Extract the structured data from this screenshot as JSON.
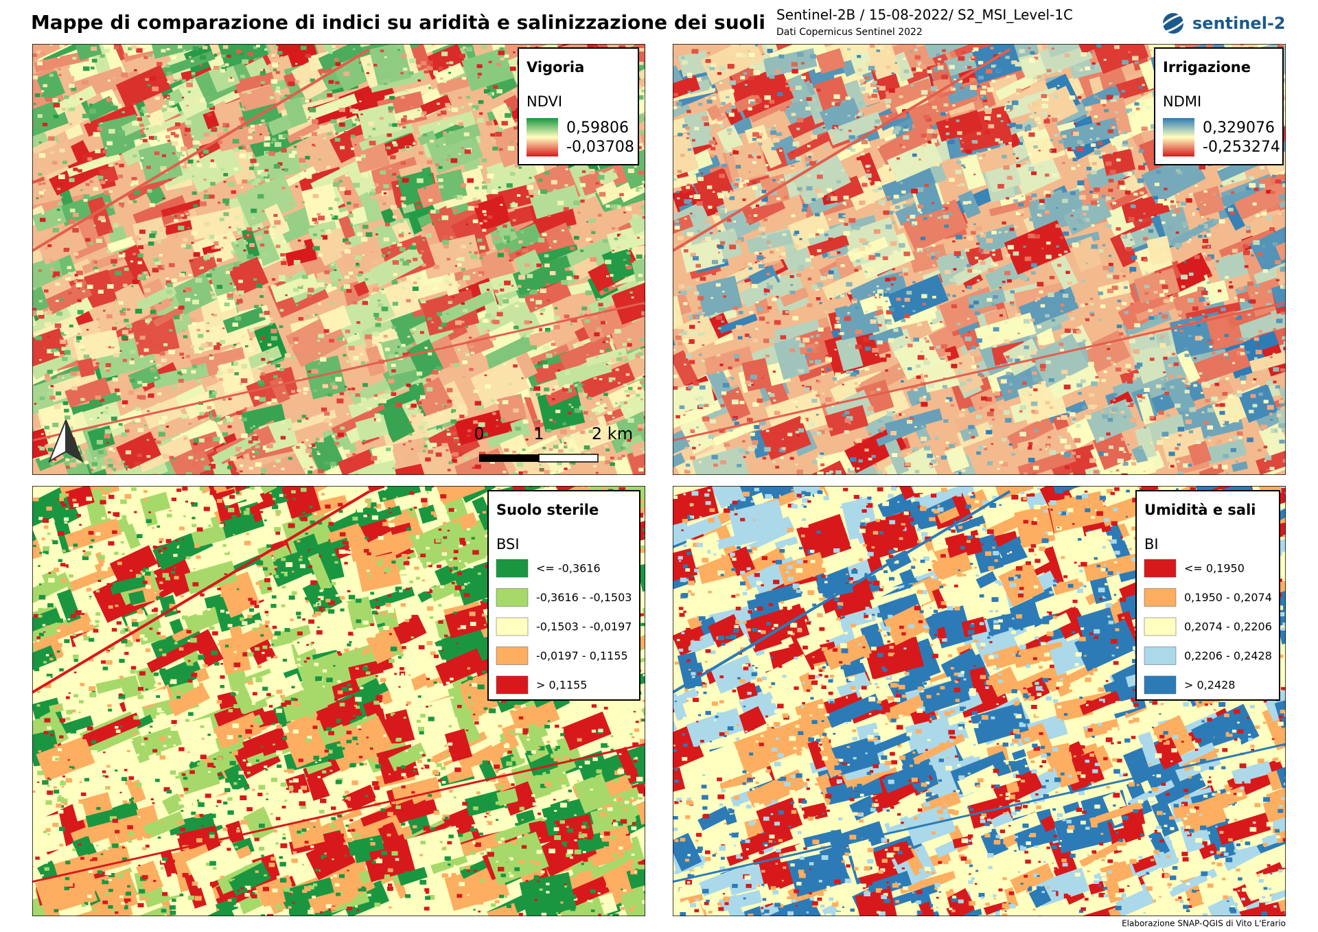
{
  "header": {
    "title": "Mappe di comparazione di indici su aridità e salinizzazione dei suoli",
    "subtitle": "Sentinel-2B / 15-08-2022/ S2_MSI_Level-1C",
    "source": "Dati Copernicus Sentinel 2022",
    "logo": "sentinel-2"
  },
  "maps": [
    {
      "title": "Vigoria",
      "index": "NDVI",
      "max": "0,59806",
      "min": "-0,03708",
      "colors": [
        "#1a9641",
        "#ffffbf",
        "#d7191c"
      ]
    },
    {
      "title": "Irrigazione",
      "index": "NDMI",
      "max": "0,329076",
      "min": "-0,253274",
      "colors": [
        "#2c7bb6",
        "#ffffbf",
        "#d7191c"
      ]
    },
    {
      "title": "Suolo sterile",
      "index": "BSI",
      "classes": [
        {
          "label": "<= -0,3616",
          "color": "#1a9641"
        },
        {
          "label": "-0,3616 - -0,1503",
          "color": "#a6d96a"
        },
        {
          "label": "-0,1503 - -0,0197",
          "color": "#ffffc0"
        },
        {
          "label": "-0,0197 - 0,1155",
          "color": "#fdae61"
        },
        {
          "label": "> 0,1155",
          "color": "#d7191c"
        }
      ]
    },
    {
      "title": "Umidità e sali",
      "index": "BI",
      "classes": [
        {
          "label": "<= 0,1950",
          "color": "#d7191c"
        },
        {
          "label": "0,1950 - 0,2074",
          "color": "#fdae61"
        },
        {
          "label": "0,2074 - 0,2206",
          "color": "#ffffc0"
        },
        {
          "label": "0,2206 - 0,2428",
          "color": "#abd9e9"
        },
        {
          "label": "> 0,2428",
          "color": "#2c7bb6"
        }
      ]
    }
  ],
  "scale_bar": {
    "labels": [
      "0",
      "1",
      "2 km"
    ]
  },
  "credit": "Elaborazione SNAP-QGIS di Vito L'Erario"
}
